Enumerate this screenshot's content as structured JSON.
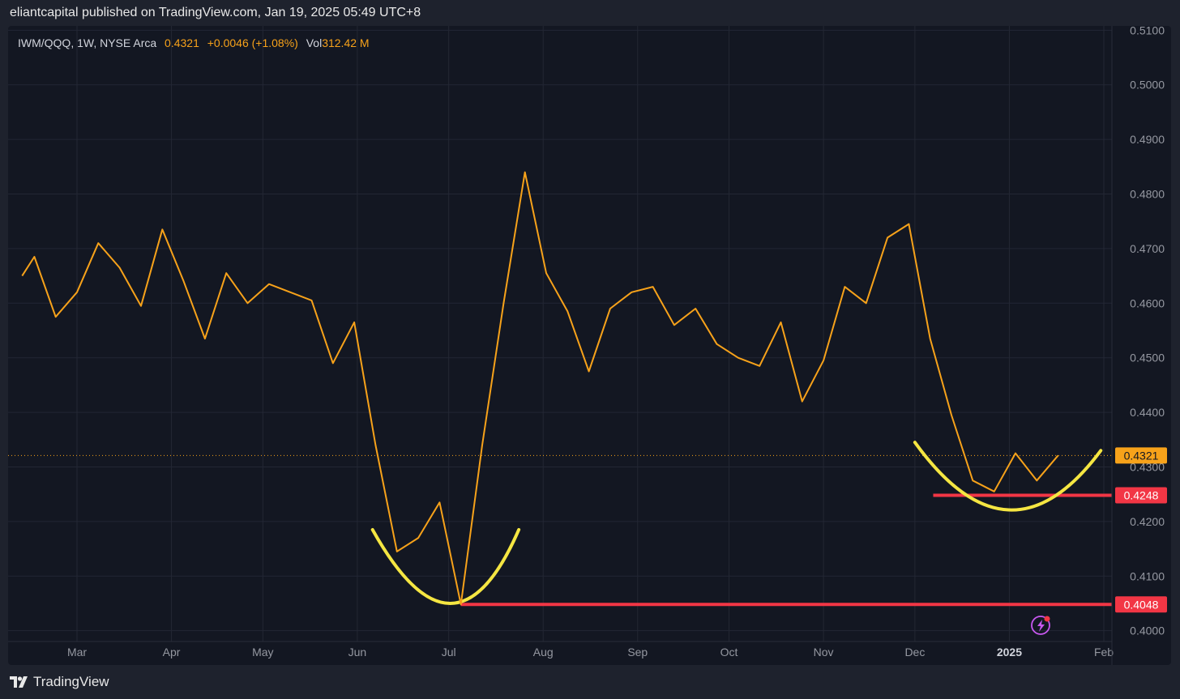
{
  "header": {
    "published": "eliantcapital published on TradingView.com, Jan 19, 2025 05:49 UTC+8"
  },
  "legend": {
    "symbol": "IWM/QQQ, 1W, NYSE Arca",
    "price": "0.4321",
    "change": "+0.0046 (+1.08%)",
    "vol_label": "Vol",
    "vol_value": "312.42 M"
  },
  "footer": {
    "brand": "TradingView",
    "logo_icon": "tradingview-logo-icon"
  },
  "colors": {
    "line": "#f7a21a",
    "annotation_curve": "#f5e642",
    "support_line": "#f23645",
    "price_label_bg": "#f7a21a",
    "grid": "#232734",
    "background": "#131722"
  },
  "chart_data": {
    "type": "line",
    "ylim": [
      0.3998,
      0.5102
    ],
    "y_ticks": [
      "0.5100",
      "0.5000",
      "0.4900",
      "0.4800",
      "0.4700",
      "0.4600",
      "0.4500",
      "0.4400",
      "0.4300",
      "0.4200",
      "0.4100",
      "0.4000"
    ],
    "x_tick_labels": [
      {
        "label": "Mar",
        "date": "2024-03-01",
        "bold": false
      },
      {
        "label": "Apr",
        "date": "2024-04-01",
        "bold": false
      },
      {
        "label": "May",
        "date": "2024-05-01",
        "bold": false
      },
      {
        "label": "Jun",
        "date": "2024-06-01",
        "bold": false
      },
      {
        "label": "Jul",
        "date": "2024-07-01",
        "bold": false
      },
      {
        "label": "Aug",
        "date": "2024-08-01",
        "bold": false
      },
      {
        "label": "Sep",
        "date": "2024-09-01",
        "bold": false
      },
      {
        "label": "Oct",
        "date": "2024-10-01",
        "bold": false
      },
      {
        "label": "Nov",
        "date": "2024-11-01",
        "bold": false
      },
      {
        "label": "Dec",
        "date": "2024-12-01",
        "bold": false
      },
      {
        "label": "2025",
        "date": "2025-01-01",
        "bold": true
      },
      {
        "label": "Feb",
        "date": "2025-02-01",
        "bold": false
      }
    ],
    "series": [
      {
        "points": [
          [
            "2024-02-12",
            0.465
          ],
          [
            "2024-02-16",
            0.4685
          ],
          [
            "2024-02-23",
            0.4575
          ],
          [
            "2024-03-01",
            0.462
          ],
          [
            "2024-03-08",
            0.471
          ],
          [
            "2024-03-15",
            0.4665
          ],
          [
            "2024-03-22",
            0.4595
          ],
          [
            "2024-03-29",
            0.4735
          ],
          [
            "2024-04-05",
            0.464
          ],
          [
            "2024-04-12",
            0.4535
          ],
          [
            "2024-04-19",
            0.4655
          ],
          [
            "2024-04-26",
            0.46
          ],
          [
            "2024-05-03",
            0.4635
          ],
          [
            "2024-05-10",
            0.462
          ],
          [
            "2024-05-17",
            0.4605
          ],
          [
            "2024-05-24",
            0.449
          ],
          [
            "2024-05-31",
            0.4565
          ],
          [
            "2024-06-07",
            0.434
          ],
          [
            "2024-06-14",
            0.4145
          ],
          [
            "2024-06-21",
            0.417
          ],
          [
            "2024-06-28",
            0.4235
          ],
          [
            "2024-07-05",
            0.4048
          ],
          [
            "2024-07-12",
            0.434
          ],
          [
            "2024-07-19",
            0.46
          ],
          [
            "2024-07-26",
            0.484
          ],
          [
            "2024-08-02",
            0.4655
          ],
          [
            "2024-08-09",
            0.4585
          ],
          [
            "2024-08-16",
            0.4475
          ],
          [
            "2024-08-23",
            0.459
          ],
          [
            "2024-08-30",
            0.462
          ],
          [
            "2024-09-06",
            0.463
          ],
          [
            "2024-09-13",
            0.456
          ],
          [
            "2024-09-20",
            0.459
          ],
          [
            "2024-09-27",
            0.4525
          ],
          [
            "2024-10-04",
            0.45
          ],
          [
            "2024-10-11",
            0.4485
          ],
          [
            "2024-10-18",
            0.4565
          ],
          [
            "2024-10-25",
            0.442
          ],
          [
            "2024-11-01",
            0.4495
          ],
          [
            "2024-11-08",
            0.463
          ],
          [
            "2024-11-15",
            0.46
          ],
          [
            "2024-11-22",
            0.472
          ],
          [
            "2024-11-29",
            0.4745
          ],
          [
            "2024-12-06",
            0.4535
          ],
          [
            "2024-12-13",
            0.4395
          ],
          [
            "2024-12-20",
            0.4275
          ],
          [
            "2024-12-27",
            0.4255
          ],
          [
            "2025-01-03",
            0.4325
          ],
          [
            "2025-01-10",
            0.4275
          ],
          [
            "2025-01-17",
            0.4321
          ]
        ]
      }
    ],
    "current_price": {
      "value": 0.4321,
      "label": "0.4321"
    },
    "horizontal_lines": [
      {
        "value": 0.4248,
        "start": "2024-12-07",
        "label": "0.4248"
      },
      {
        "value": 0.4048,
        "start": "2024-07-05",
        "label": "0.4048"
      }
    ],
    "annotation_curves": [
      {
        "start": [
          "2024-06-06",
          0.4185
        ],
        "control": [
          "2024-07-03",
          0.3915
        ],
        "end": [
          "2024-07-24",
          0.4185
        ]
      },
      {
        "start": [
          "2024-12-01",
          0.4345
        ],
        "control": [
          "2025-01-01",
          0.4105
        ],
        "end": [
          "2025-01-31",
          0.433
        ]
      }
    ],
    "grid": true,
    "price_axis": "right"
  }
}
